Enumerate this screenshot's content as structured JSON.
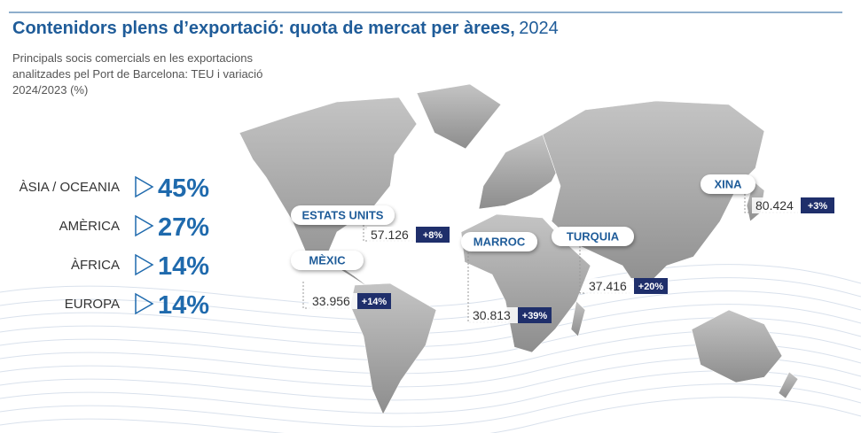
{
  "header": {
    "title": "Contenidors plens d’exportació: quota de mercat per àrees,",
    "year": "2024",
    "subtitle": [
      "Principals socis comercials en les exportacions",
      "analitzades pel Port de Barcelona: TEU i variació",
      "2024/2023 (%)"
    ]
  },
  "shares": [
    {
      "area": "ÀSIA / OCEANIA",
      "percent": "45%"
    },
    {
      "area": "AMÈRICA",
      "percent": "27%"
    },
    {
      "area": "ÀFRICA",
      "percent": "14%"
    },
    {
      "area": "EUROPA",
      "percent": "14%"
    }
  ],
  "callouts": [
    {
      "name": "ESTATS UNITS",
      "teu": "57.126",
      "change": "+8%"
    },
    {
      "name": "MÈXIC",
      "teu": "33.956",
      "change": "+14%"
    },
    {
      "name": "MARROC",
      "teu": "30.813",
      "change": "+39%"
    },
    {
      "name": "TURQUIA",
      "teu": "37.416",
      "change": "+20%"
    },
    {
      "name": "XINA",
      "teu": "80.424",
      "change": "+3%"
    }
  ]
}
